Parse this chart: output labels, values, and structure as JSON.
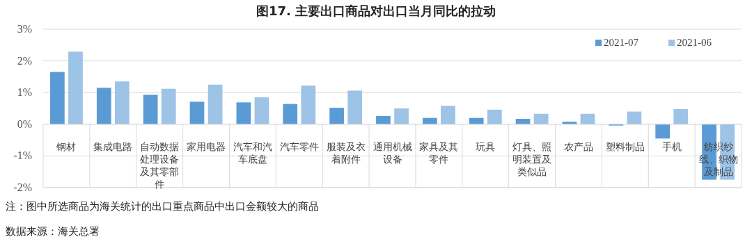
{
  "chart_data": {
    "type": "bar",
    "title": "图17.  主要出口商品对出口当月同比的拉动",
    "categories": [
      "钢材",
      "集成电路",
      "自动数据处理设备及其零部件",
      "家用电器",
      "汽车和汽车底盘",
      "汽车零件",
      "服装及衣着附件",
      "通用机械设备",
      "家具及其零件",
      "玩具",
      "灯具、照明装置及类似品",
      "农产品",
      "塑料制品",
      "手机",
      "纺织纱线、织物及制品"
    ],
    "series": [
      {
        "name": "2021-07",
        "color": "#5b9bd5",
        "values": [
          1.65,
          1.15,
          0.93,
          0.71,
          0.69,
          0.64,
          0.52,
          0.26,
          0.2,
          0.2,
          0.17,
          0.08,
          -0.04,
          -0.45,
          -1.75
        ]
      },
      {
        "name": "2021-06",
        "color": "#9dc3e6",
        "values": [
          2.29,
          1.35,
          1.12,
          1.25,
          0.85,
          1.22,
          1.06,
          0.5,
          0.58,
          0.46,
          0.33,
          0.33,
          0.4,
          0.48,
          -1.75
        ]
      }
    ],
    "ylim": [
      -2,
      3
    ],
    "yticks": [
      {
        "value": -2,
        "label": "-2%"
      },
      {
        "value": -1,
        "label": "-1%"
      },
      {
        "value": 0,
        "label": "0%"
      },
      {
        "value": 1,
        "label": "1%"
      },
      {
        "value": 2,
        "label": "2%"
      },
      {
        "value": 3,
        "label": "3%"
      }
    ],
    "grid": "y",
    "legend": "top right",
    "annotations": [
      "注：图中所选商品为海关统计的出口重点商品中出口金额较大的商品",
      "数据来源：海关总署"
    ]
  }
}
